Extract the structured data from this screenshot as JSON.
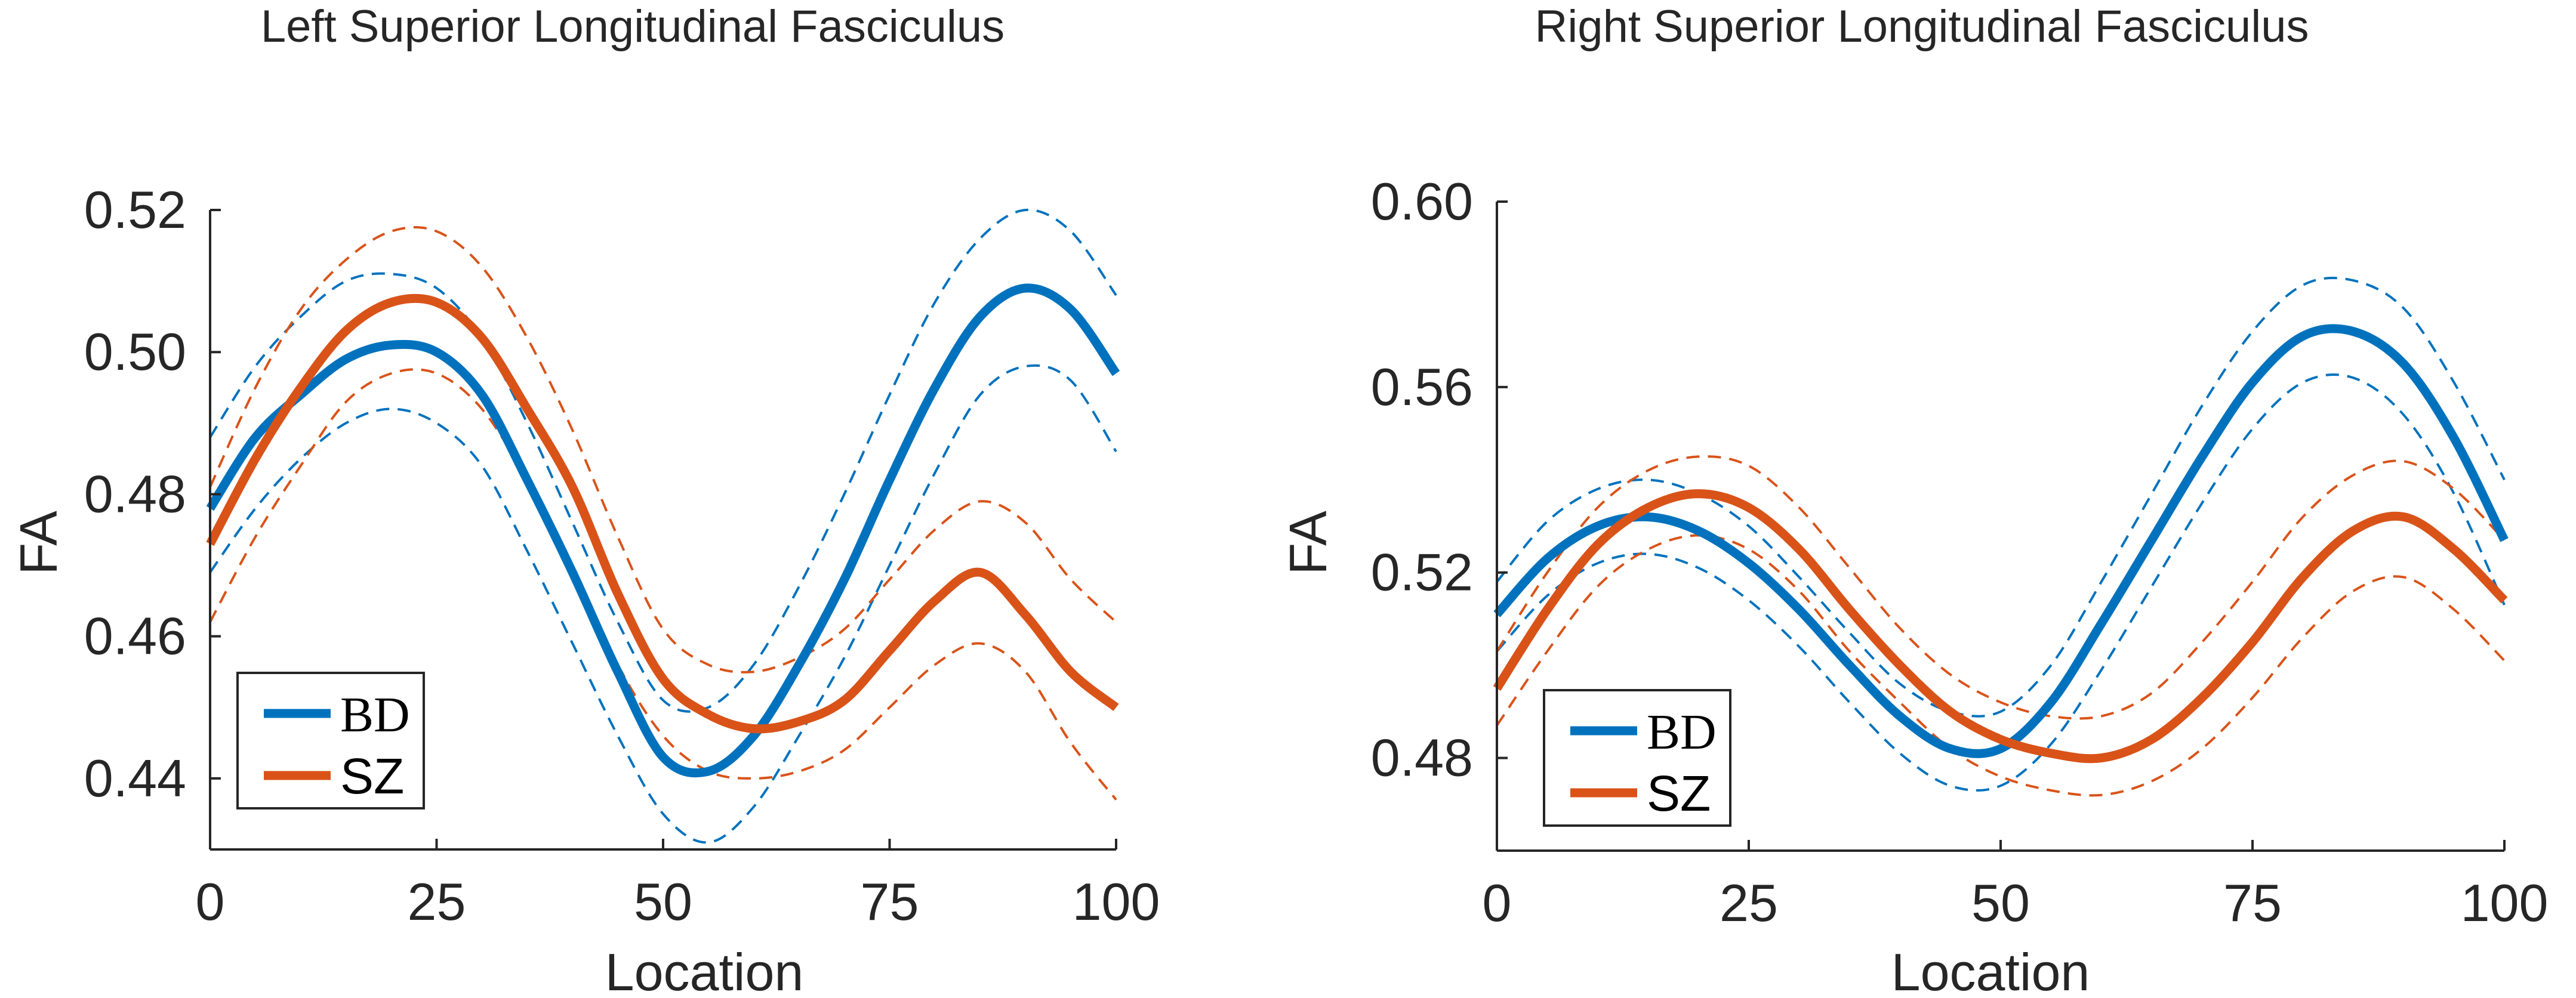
{
  "chart_data": [
    {
      "type": "line",
      "title": "Left Superior Longitudinal Fasciculus",
      "xlabel": "Location",
      "ylabel": "FA",
      "xlim": [
        0,
        100
      ],
      "ylim": [
        0.43,
        0.52
      ],
      "xticks": [
        0,
        25,
        50,
        75,
        100
      ],
      "xtick_labels": [
        "0",
        "25",
        "50",
        "75",
        "100"
      ],
      "yticks": [
        0.44,
        0.46,
        0.48,
        0.5,
        0.52
      ],
      "ytick_labels": [
        "0.44",
        "0.46",
        "0.48",
        "0.50",
        "0.52"
      ],
      "legend_position": "bottom-left",
      "series": [
        {
          "name": "BD",
          "color": "#0072BD",
          "mean": {
            "x": [
              0,
              5,
              10,
              15,
              20,
              25,
              30,
              35,
              40,
              45,
              50,
              55,
              60,
              65,
              70,
              75,
              80,
              85,
              90,
              95,
              100
            ],
            "y": [
              0.478,
              0.488,
              0.494,
              0.499,
              0.501,
              0.5,
              0.494,
              0.482,
              0.469,
              0.455,
              0.443,
              0.441,
              0.446,
              0.456,
              0.468,
              0.482,
              0.495,
              0.505,
              0.509,
              0.506,
              0.497
            ]
          },
          "upper": {
            "x": [
              0,
              5,
              10,
              15,
              20,
              25,
              30,
              35,
              40,
              45,
              50,
              55,
              60,
              65,
              70,
              75,
              80,
              85,
              90,
              95,
              100
            ],
            "y": [
              0.488,
              0.498,
              0.505,
              0.51,
              0.511,
              0.509,
              0.502,
              0.49,
              0.476,
              0.462,
              0.451,
              0.45,
              0.456,
              0.467,
              0.48,
              0.494,
              0.507,
              0.516,
              0.52,
              0.517,
              0.508
            ]
          },
          "lower": {
            "x": [
              0,
              5,
              10,
              15,
              20,
              25,
              30,
              35,
              40,
              45,
              50,
              55,
              60,
              65,
              70,
              75,
              80,
              85,
              90,
              95,
              100
            ],
            "y": [
              0.469,
              0.478,
              0.485,
              0.49,
              0.492,
              0.49,
              0.484,
              0.472,
              0.459,
              0.446,
              0.435,
              0.431,
              0.436,
              0.446,
              0.457,
              0.47,
              0.483,
              0.494,
              0.498,
              0.496,
              0.486
            ]
          }
        },
        {
          "name": "SZ",
          "color": "#D95319",
          "mean": {
            "x": [
              0,
              5,
              10,
              15,
              20,
              25,
              30,
              35,
              40,
              45,
              50,
              55,
              60,
              65,
              70,
              75,
              80,
              85,
              90,
              95,
              100
            ],
            "y": [
              0.473,
              0.485,
              0.495,
              0.503,
              0.507,
              0.507,
              0.502,
              0.492,
              0.481,
              0.466,
              0.454,
              0.449,
              0.447,
              0.448,
              0.451,
              0.458,
              0.465,
              0.469,
              0.463,
              0.455,
              0.45
            ]
          },
          "upper": {
            "x": [
              0,
              5,
              10,
              15,
              20,
              25,
              30,
              35,
              40,
              45,
              50,
              55,
              60,
              65,
              70,
              75,
              80,
              85,
              90,
              95,
              100
            ],
            "y": [
              0.481,
              0.495,
              0.506,
              0.513,
              0.517,
              0.517,
              0.512,
              0.502,
              0.489,
              0.474,
              0.461,
              0.456,
              0.455,
              0.457,
              0.461,
              0.468,
              0.475,
              0.479,
              0.476,
              0.468,
              0.462
            ]
          },
          "lower": {
            "x": [
              0,
              5,
              10,
              15,
              20,
              25,
              30,
              35,
              40,
              45,
              50,
              55,
              60,
              65,
              70,
              75,
              80,
              85,
              90,
              95,
              100
            ],
            "y": [
              0.462,
              0.474,
              0.484,
              0.493,
              0.497,
              0.497,
              0.492,
              0.482,
              0.47,
              0.456,
              0.446,
              0.441,
              0.44,
              0.441,
              0.444,
              0.45,
              0.456,
              0.459,
              0.455,
              0.445,
              0.437
            ]
          }
        }
      ]
    },
    {
      "type": "line",
      "title": "Right Superior Longitudinal Fasciculus",
      "xlabel": "Location",
      "ylabel": "FA",
      "xlim": [
        0,
        100
      ],
      "ylim": [
        0.46,
        0.6
      ],
      "xticks": [
        0,
        25,
        50,
        75,
        100
      ],
      "xtick_labels": [
        "0",
        "25",
        "50",
        "75",
        "100"
      ],
      "yticks": [
        0.48,
        0.52,
        0.56,
        0.6
      ],
      "ytick_labels": [
        "0.48",
        "0.52",
        "0.56",
        "0.60"
      ],
      "legend_position": "bottom-left",
      "series": [
        {
          "name": "BD",
          "color": "#0072BD",
          "mean": {
            "x": [
              0,
              5,
              10,
              15,
              20,
              25,
              30,
              35,
              40,
              45,
              50,
              55,
              60,
              65,
              70,
              75,
              80,
              85,
              90,
              95,
              100
            ],
            "y": [
              0.511,
              0.523,
              0.53,
              0.532,
              0.529,
              0.522,
              0.512,
              0.5,
              0.489,
              0.482,
              0.482,
              0.492,
              0.509,
              0.527,
              0.545,
              0.561,
              0.571,
              0.572,
              0.565,
              0.549,
              0.527
            ]
          },
          "upper": {
            "x": [
              0,
              5,
              10,
              15,
              20,
              25,
              30,
              35,
              40,
              45,
              50,
              55,
              60,
              65,
              70,
              75,
              80,
              85,
              90,
              95,
              100
            ],
            "y": [
              0.518,
              0.531,
              0.538,
              0.54,
              0.537,
              0.53,
              0.519,
              0.507,
              0.496,
              0.49,
              0.49,
              0.5,
              0.518,
              0.537,
              0.556,
              0.572,
              0.582,
              0.583,
              0.577,
              0.561,
              0.54
            ]
          },
          "lower": {
            "x": [
              0,
              5,
              10,
              15,
              20,
              25,
              30,
              35,
              40,
              45,
              50,
              55,
              60,
              65,
              70,
              75,
              80,
              85,
              90,
              95,
              100
            ],
            "y": [
              0.503,
              0.515,
              0.522,
              0.524,
              0.521,
              0.514,
              0.504,
              0.492,
              0.481,
              0.474,
              0.474,
              0.483,
              0.499,
              0.517,
              0.535,
              0.551,
              0.561,
              0.562,
              0.554,
              0.537,
              0.513
            ]
          }
        },
        {
          "name": "SZ",
          "color": "#D95319",
          "mean": {
            "x": [
              0,
              5,
              10,
              15,
              20,
              25,
              30,
              35,
              40,
              45,
              50,
              55,
              60,
              65,
              70,
              75,
              80,
              85,
              90,
              95,
              100
            ],
            "y": [
              0.495,
              0.512,
              0.526,
              0.534,
              0.537,
              0.534,
              0.525,
              0.512,
              0.5,
              0.49,
              0.484,
              0.481,
              0.48,
              0.484,
              0.493,
              0.505,
              0.519,
              0.529,
              0.532,
              0.525,
              0.514
            ]
          },
          "upper": {
            "x": [
              0,
              5,
              10,
              15,
              20,
              25,
              30,
              35,
              40,
              45,
              50,
              55,
              60,
              65,
              70,
              75,
              80,
              85,
              90,
              95,
              100
            ],
            "y": [
              0.503,
              0.52,
              0.534,
              0.542,
              0.545,
              0.543,
              0.534,
              0.521,
              0.508,
              0.498,
              0.492,
              0.489,
              0.489,
              0.494,
              0.505,
              0.518,
              0.532,
              0.541,
              0.544,
              0.538,
              0.527
            ]
          },
          "lower": {
            "x": [
              0,
              5,
              10,
              15,
              20,
              25,
              30,
              35,
              40,
              45,
              50,
              55,
              60,
              65,
              70,
              75,
              80,
              85,
              90,
              95,
              100
            ],
            "y": [
              0.487,
              0.503,
              0.517,
              0.525,
              0.528,
              0.525,
              0.516,
              0.503,
              0.492,
              0.482,
              0.476,
              0.473,
              0.472,
              0.475,
              0.482,
              0.493,
              0.506,
              0.516,
              0.519,
              0.512,
              0.501
            ]
          }
        }
      ]
    }
  ]
}
